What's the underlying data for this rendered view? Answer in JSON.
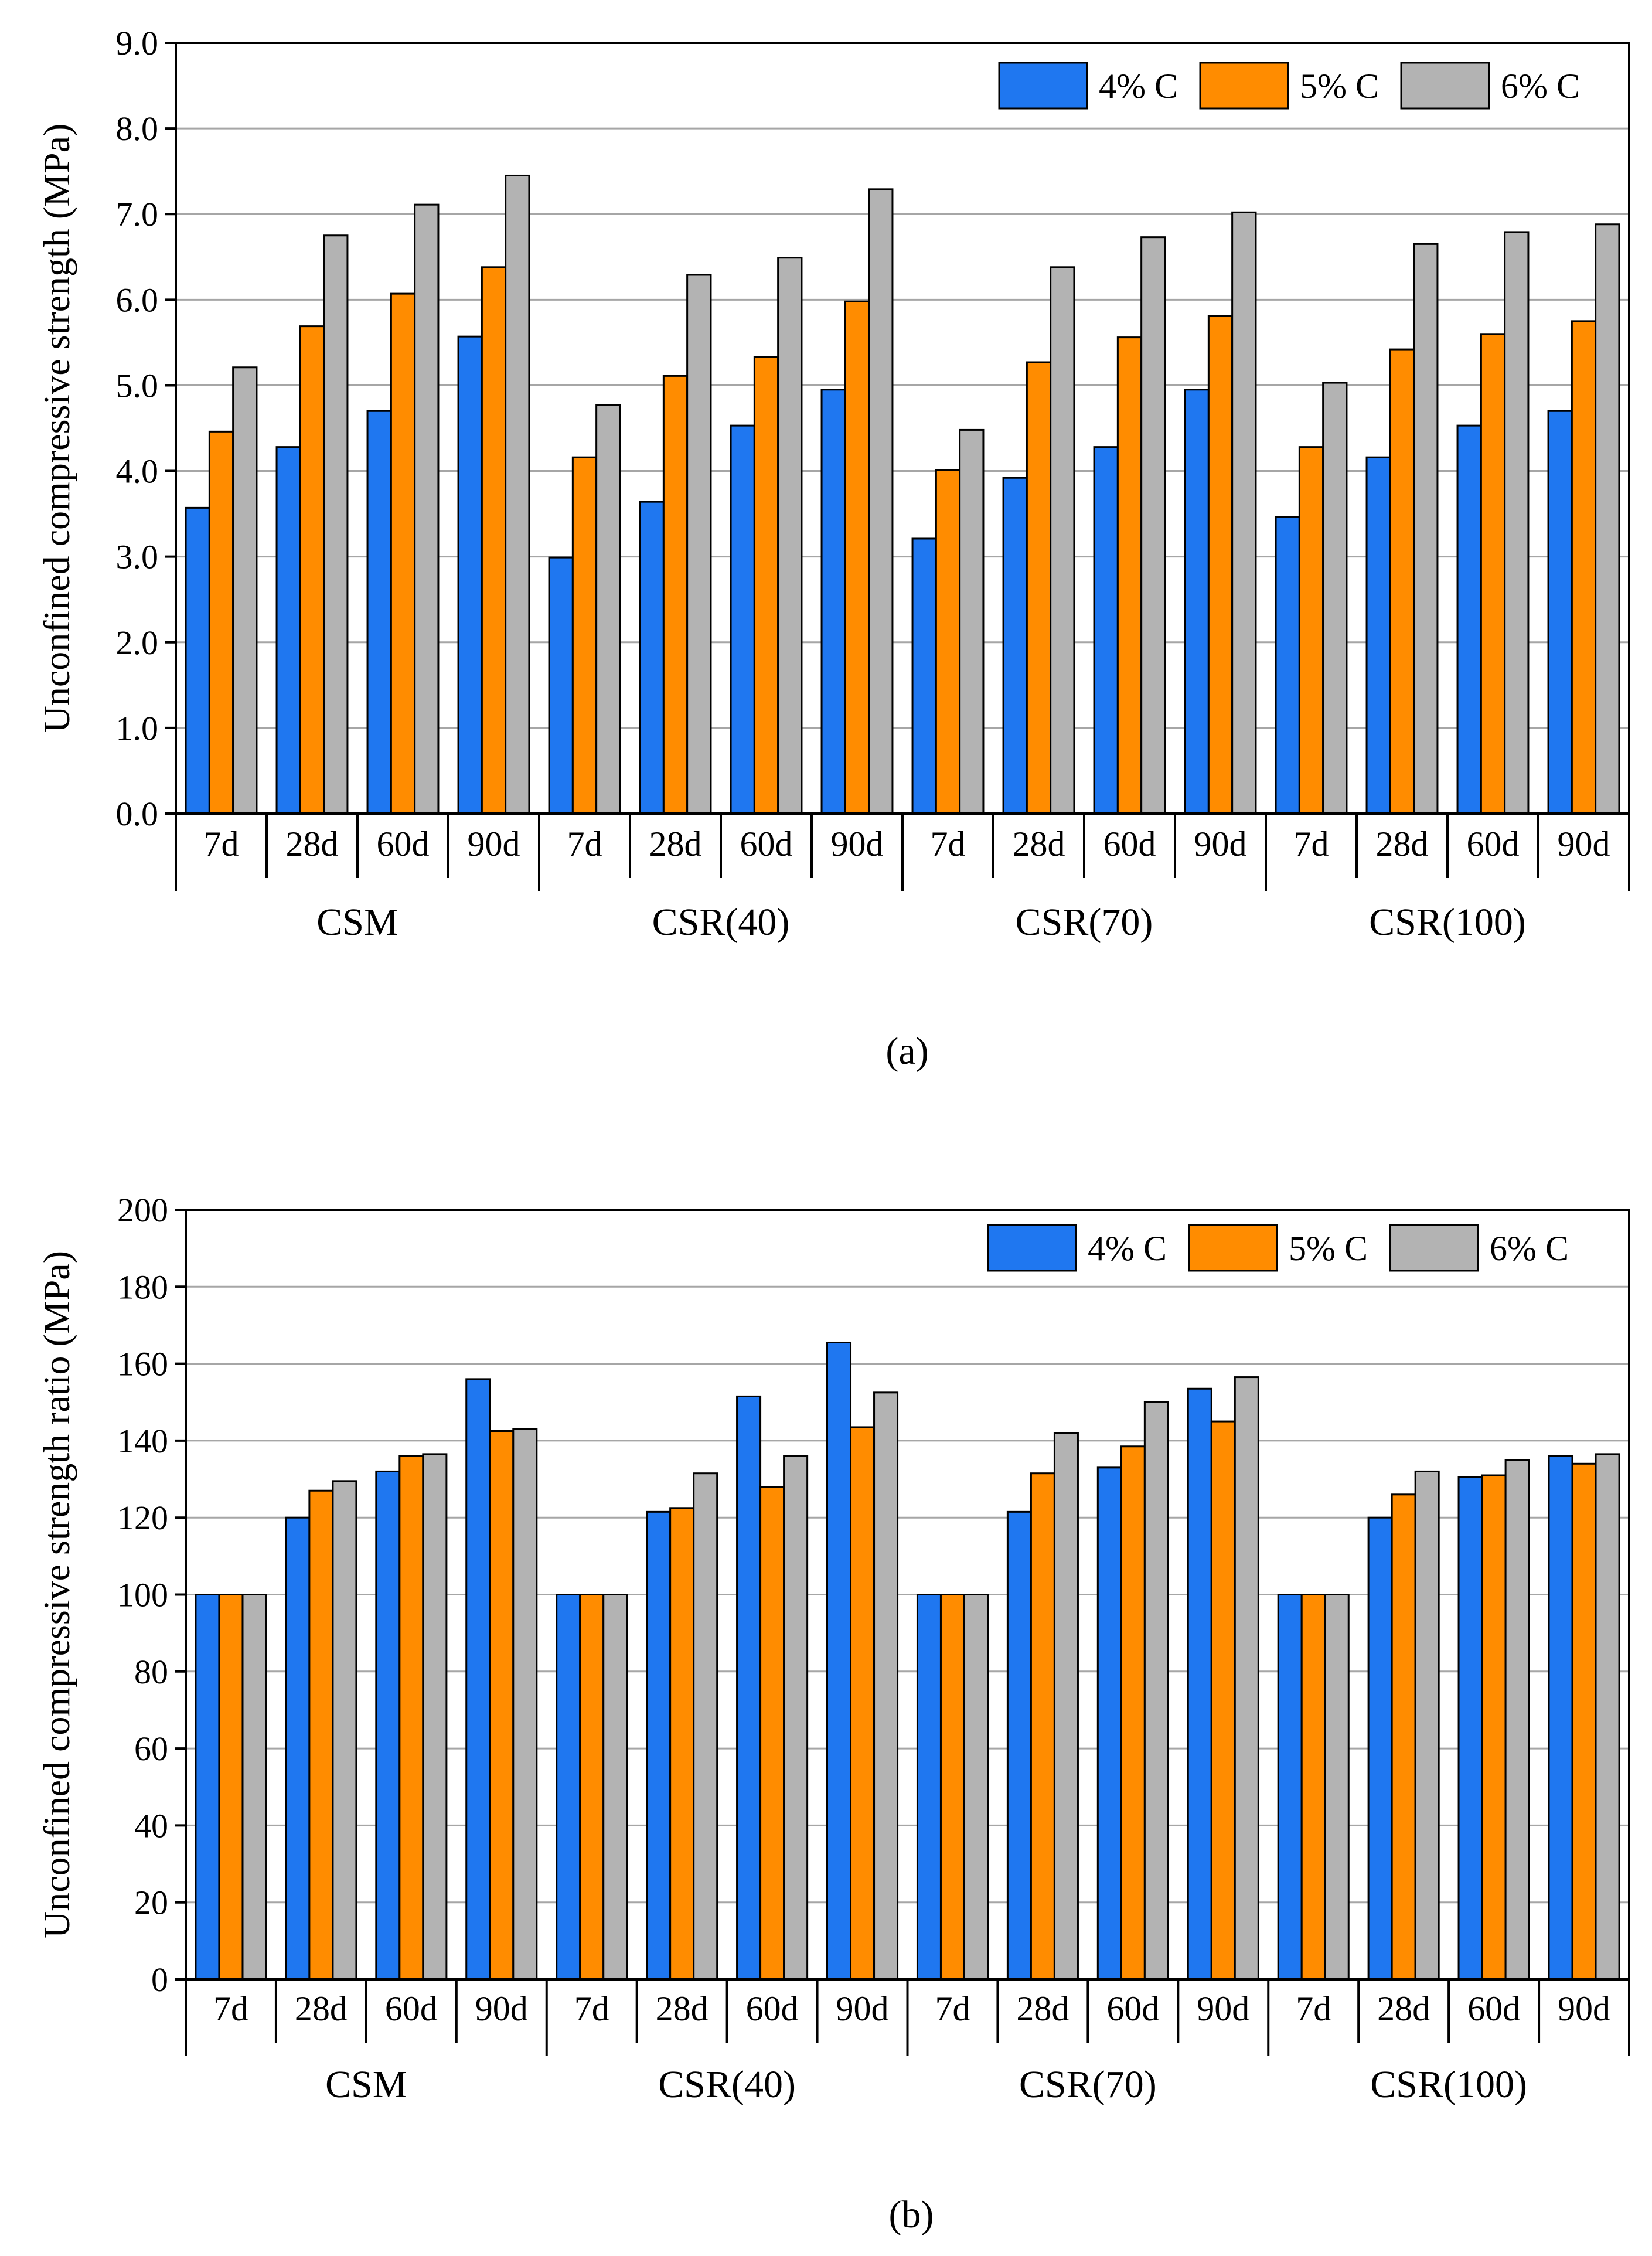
{
  "colors": {
    "4% C": "#1f77f0",
    "5% C": "#ff8c00",
    "6% C": "#b3b3b3"
  },
  "chart_data": [
    {
      "type": "bar",
      "caption": "(a)",
      "ylabel": "Unconfined compressive strength (MPa)",
      "ylim": [
        0,
        9
      ],
      "yticks": [
        "0.0",
        "1.0",
        "2.0",
        "3.0",
        "4.0",
        "5.0",
        "6.0",
        "7.0",
        "8.0",
        "9.0"
      ],
      "grid": true,
      "legend": "top-right",
      "groups": [
        "CSM",
        "CSR(40)",
        "CSR(70)",
        "CSR(100)"
      ],
      "ages": [
        "7d",
        "28d",
        "60d",
        "90d"
      ],
      "series": [
        {
          "name": "4% C",
          "values": [
            3.57,
            4.28,
            4.7,
            5.57,
            2.99,
            3.64,
            4.53,
            4.95,
            3.21,
            3.92,
            4.28,
            4.95,
            3.46,
            4.16,
            4.53,
            4.7
          ]
        },
        {
          "name": "5% C",
          "values": [
            4.46,
            5.69,
            6.07,
            6.38,
            4.16,
            5.11,
            5.33,
            5.98,
            4.01,
            5.27,
            5.56,
            5.81,
            4.28,
            5.42,
            5.6,
            5.75
          ]
        },
        {
          "name": "6% C",
          "values": [
            5.21,
            6.75,
            7.11,
            7.45,
            4.77,
            6.29,
            6.49,
            7.29,
            4.48,
            6.38,
            6.73,
            7.02,
            5.03,
            6.65,
            6.79,
            6.88
          ]
        }
      ]
    },
    {
      "type": "bar",
      "caption": "(b)",
      "ylabel": "Unconfined compressive strength ratio (MPa)",
      "ylim": [
        0,
        200
      ],
      "yticks": [
        "0",
        "20",
        "40",
        "60",
        "80",
        "100",
        "120",
        "140",
        "160",
        "180",
        "200"
      ],
      "grid": true,
      "legend": "top-right",
      "groups": [
        "CSM",
        "CSR(40)",
        "CSR(70)",
        "CSR(100)"
      ],
      "ages": [
        "7d",
        "28d",
        "60d",
        "90d"
      ],
      "series": [
        {
          "name": "4% C",
          "values": [
            100,
            120,
            132,
            156,
            100,
            121.5,
            151.5,
            165.5,
            100,
            121.5,
            133,
            153.5,
            100,
            120,
            130.5,
            136
          ]
        },
        {
          "name": "5% C",
          "values": [
            100,
            127,
            136,
            142.5,
            100,
            122.5,
            128,
            143.5,
            100,
            131.5,
            138.5,
            145,
            100,
            126,
            131,
            134
          ]
        },
        {
          "name": "6% C",
          "values": [
            100,
            129.5,
            136.5,
            143,
            100,
            131.5,
            136,
            152.5,
            100,
            142,
            150,
            156.5,
            100,
            132,
            135,
            136.5
          ]
        }
      ]
    }
  ]
}
